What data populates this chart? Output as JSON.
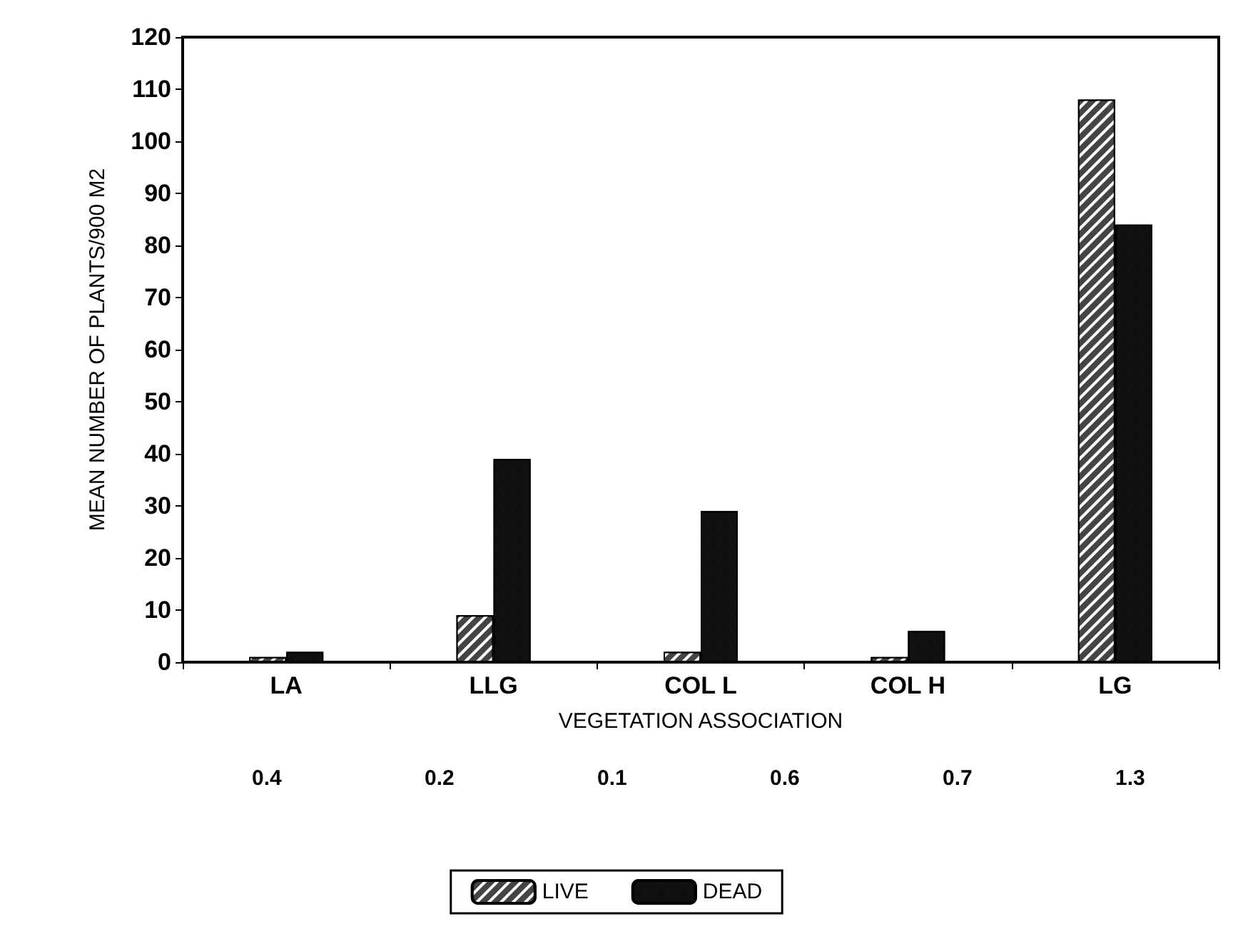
{
  "chart_data": {
    "type": "bar",
    "xlabel": "VEGETATION ASSOCIATION",
    "ylabel": "MEAN NUMBER OF PLANTS/900 M2",
    "categories": [
      "LA",
      "LLG",
      "COL L",
      "COL H",
      "LG"
    ],
    "series": [
      {
        "name": "LIVE",
        "color": "#444444",
        "values": [
          1,
          9,
          2,
          1,
          108
        ]
      },
      {
        "name": "DEAD",
        "color": "#111111",
        "values": [
          2,
          39,
          29,
          6,
          84
        ]
      }
    ],
    "ylim": [
      0,
      120
    ],
    "yticks": [
      0,
      10,
      20,
      30,
      40,
      50,
      60,
      70,
      80,
      90,
      100,
      110,
      120
    ],
    "grid": false,
    "legend": "bottom",
    "annotations": [
      "0.4",
      "0.2",
      "0.1",
      "0.6",
      "0.7",
      "1.3"
    ]
  }
}
